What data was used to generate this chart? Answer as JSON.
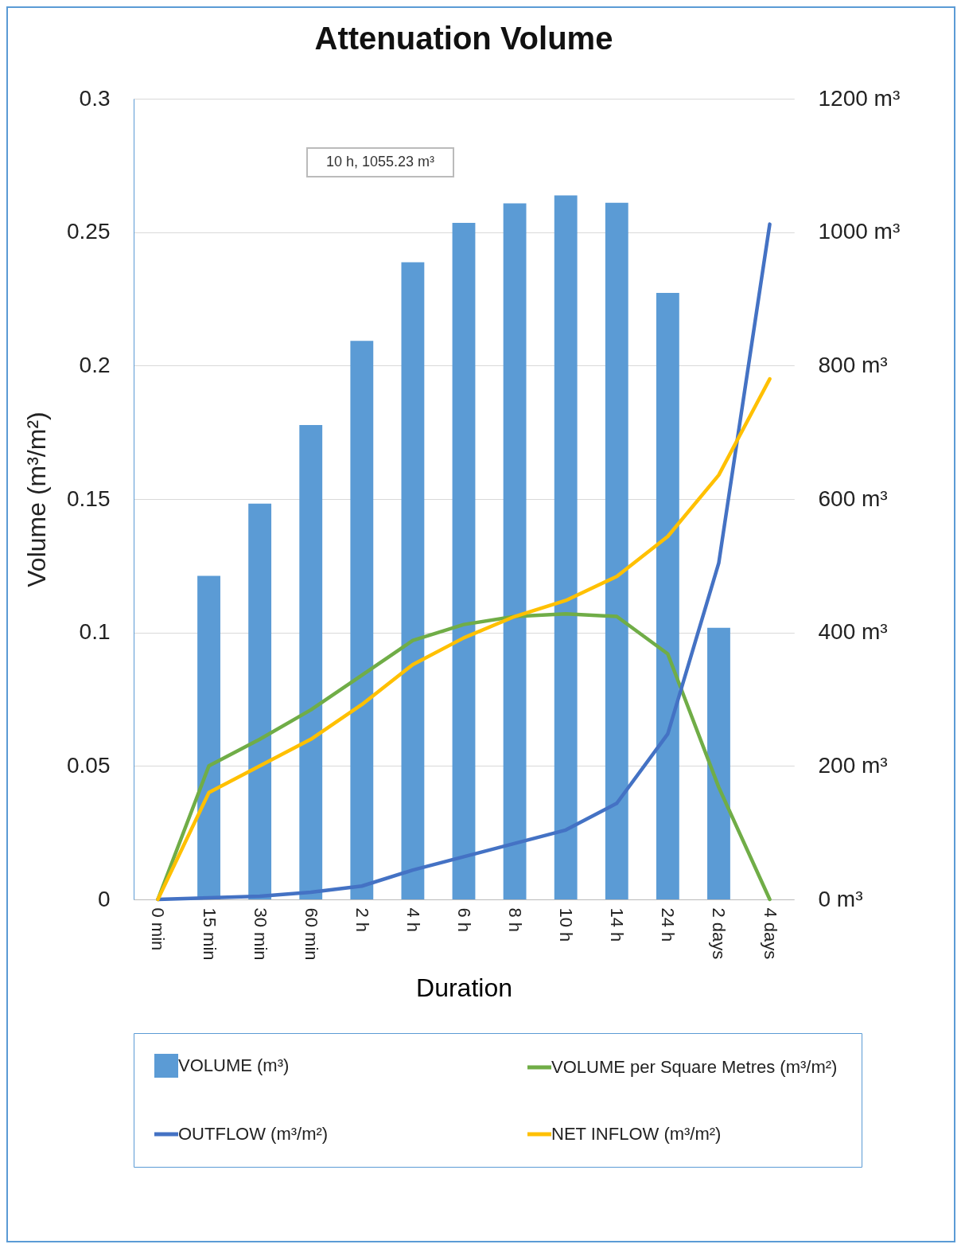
{
  "chart_data": {
    "type": "bar",
    "title": "Attenuation Volume",
    "xlabel": "Duration",
    "ylabel": "Volume (m³/m²)",
    "categories": [
      "0 min",
      "15 min",
      "30 min",
      "60 min",
      "2 h",
      "4 h",
      "6 h",
      "8 h",
      "10 h",
      "14 h",
      "24 h",
      "2 days",
      "4 days"
    ],
    "series": [
      {
        "name": "VOLUME (m³)",
        "axis": "y2",
        "color": "#5b9bd5",
        "values": [
          null,
          485,
          593,
          711,
          837,
          955,
          1014,
          1043,
          1055,
          1044,
          909,
          407,
          null
        ]
      },
      {
        "name": "VOLUME per Square Metres (m³/m²)",
        "type": "line",
        "color": "#70ad47",
        "values": [
          0,
          0.05,
          0.06,
          0.071,
          0.084,
          0.097,
          0.103,
          0.106,
          0.107,
          0.106,
          0.092,
          0.042,
          0
        ]
      },
      {
        "name": "OUTFLOW (m³/m²)",
        "type": "line",
        "color": "#4472c4",
        "values": [
          0,
          0.0006,
          0.0012,
          0.0027,
          0.005,
          0.011,
          0.016,
          0.021,
          0.026,
          0.036,
          0.062,
          0.126,
          0.253
        ]
      },
      {
        "name": "NET INFLOW (m³/m²)",
        "type": "line",
        "color": "#ffc000",
        "values": [
          0,
          0.04,
          0.05,
          0.06,
          0.073,
          0.088,
          0.098,
          0.106,
          0.112,
          0.121,
          0.136,
          0.159,
          0.195
        ]
      }
    ],
    "ylim": [
      0,
      0.3
    ],
    "yticks": [
      0,
      0.05,
      0.1,
      0.15,
      0.2,
      0.25,
      0.3
    ],
    "y2lim": [
      0,
      1200
    ],
    "y2ticks": [
      {
        "value": 0,
        "label": "0 m³"
      },
      {
        "value": 200,
        "label": "200 m³"
      },
      {
        "value": 400,
        "label": "400 m³"
      },
      {
        "value": 600,
        "label": "600 m³"
      },
      {
        "value": 800,
        "label": "800 m³"
      },
      {
        "value": 1000,
        "label": "1000 m³"
      },
      {
        "value": 1200,
        "label": "1200 m³"
      }
    ],
    "annotations": [
      "10 h, 1055.23 m³"
    ],
    "grid": "y",
    "legend": "bottom",
    "marker": "none",
    "line_style": "solid"
  }
}
